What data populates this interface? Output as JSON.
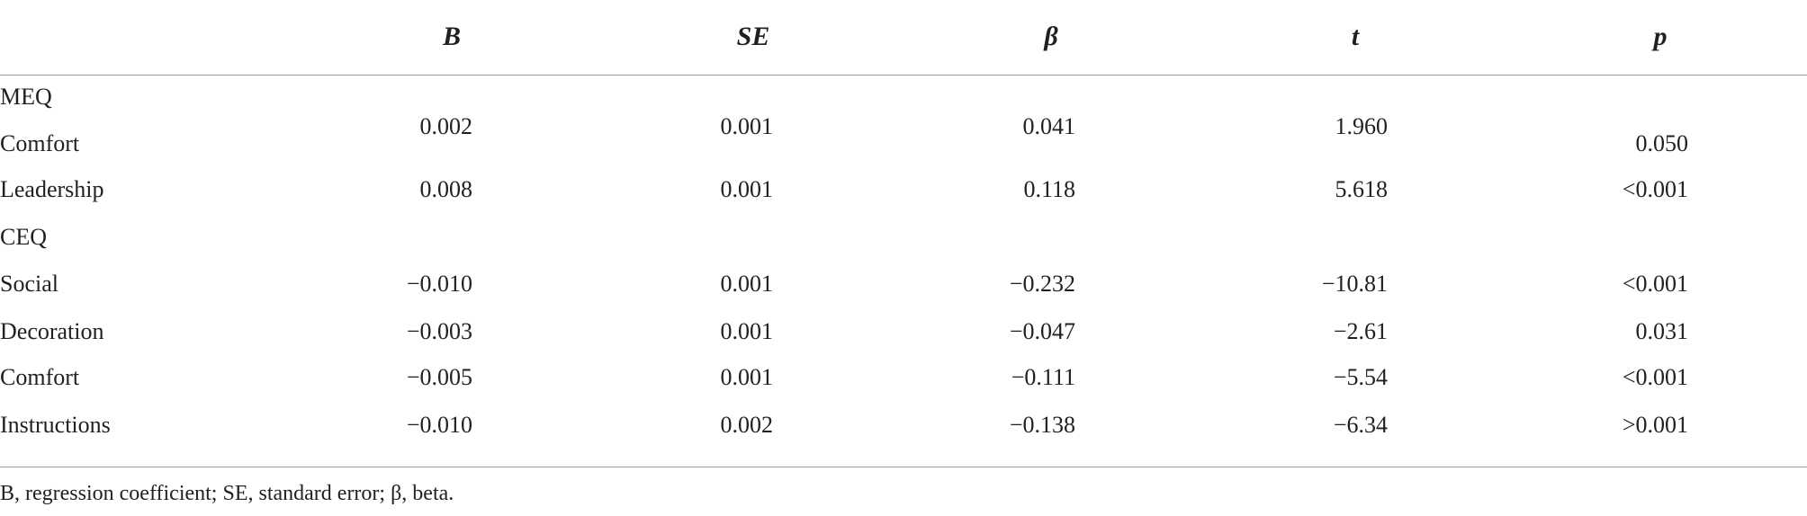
{
  "table": {
    "columns": [
      "B",
      "SE",
      "β",
      "t",
      "p"
    ],
    "rows": [
      {
        "label": "MEQ"
      },
      {
        "label": "Comfort",
        "cells": [
          "0.002",
          "0.001",
          "0.041",
          "1.960",
          "0.050"
        ]
      },
      {
        "label": "Leadership",
        "cells": [
          "0.008",
          "0.001",
          "0.118",
          "5.618",
          "<0.001"
        ]
      },
      {
        "label": "CEQ"
      },
      {
        "label": "Social",
        "cells": [
          "−0.010",
          "0.001",
          "−0.232",
          "−10.81",
          "<0.001"
        ]
      },
      {
        "label": "Decoration",
        "cells": [
          "−0.003",
          "0.001",
          "−0.047",
          "−2.61",
          "0.031"
        ]
      },
      {
        "label": "Comfort",
        "cells": [
          "−0.005",
          "0.001",
          "−0.111",
          "−5.54",
          "<0.001"
        ]
      },
      {
        "label": "Instructions",
        "cells": [
          "−0.010",
          "0.002",
          "−0.138",
          "−6.34",
          ">0.001"
        ]
      }
    ],
    "footnote": "B, regression coefficient; SE, standard error; β, beta."
  }
}
